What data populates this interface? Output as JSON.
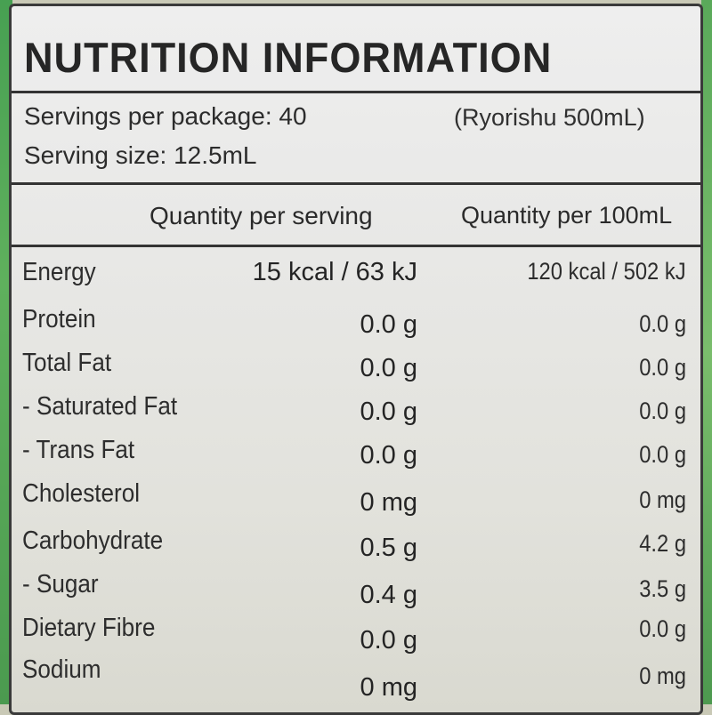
{
  "title": "NUTRITION INFORMATION",
  "servings_per_package": "Servings per package: 40",
  "serving_size": "Serving  size: 12.5mL",
  "package_note": "(Ryorishu 500mL)",
  "headers": {
    "per_serving": "Quantity per serving",
    "per_100": "Quantity per 100mL"
  },
  "rows": [
    {
      "name": "Energy",
      "serving": "15 kcal / 63 kJ",
      "per100": "120 kcal / 502 kJ"
    },
    {
      "name": "Protein",
      "serving": "0.0 g",
      "per100": "0.0 g"
    },
    {
      "name": "Total Fat",
      "serving": "0.0 g",
      "per100": "0.0 g"
    },
    {
      "name": "- Saturated  Fat",
      "serving": "0.0 g",
      "per100": "0.0 g"
    },
    {
      "name": "- Trans Fat",
      "serving": "0.0 g",
      "per100": "0.0 g"
    },
    {
      "name": "Cholesterol",
      "serving": "0 mg",
      "per100": "0 mg"
    },
    {
      "name": "Carbohydrate",
      "serving": "0.5 g",
      "per100": "4.2 g"
    },
    {
      "name": "- Sugar",
      "serving": "0.4 g",
      "per100": "3.5 g"
    },
    {
      "name": "Dietary Fibre",
      "serving": "0.0 g",
      "per100": "0.0 g"
    },
    {
      "name": "Sodium",
      "serving": "0 mg",
      "per100": "0 mg"
    }
  ],
  "colors": {
    "label_background": "#e8e8e6",
    "text": "#2a2a2a",
    "bottle_green": "#5aa95a"
  }
}
